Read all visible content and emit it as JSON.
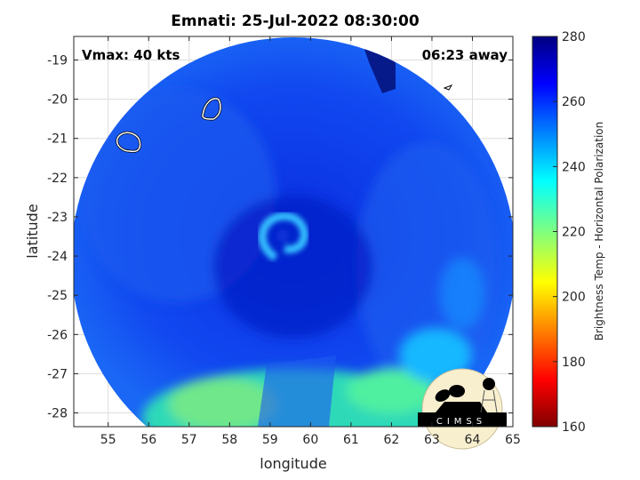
{
  "chart_data": {
    "type": "heatmap",
    "title": "Emnati: 25-Jul-2022 08:30:00",
    "xlabel": "longitude",
    "ylabel": "latitude",
    "xlim": [
      54.15,
      65.0
    ],
    "ylim": [
      -28.35,
      -18.4
    ],
    "xticks": [
      55,
      56,
      57,
      58,
      59,
      60,
      61,
      62,
      63,
      64,
      65
    ],
    "yticks": [
      -19,
      -20,
      -21,
      -22,
      -23,
      -24,
      -25,
      -26,
      -27,
      -28
    ],
    "grid": true,
    "annotations": {
      "vmax": "Vmax: 40 kts",
      "time_offset": "06:23 away"
    },
    "colorbar": {
      "label": "Brightness Temp - Horizontal Polarization",
      "range": [
        160,
        280
      ],
      "ticks": [
        280,
        260,
        240,
        220,
        200,
        180,
        160
      ],
      "colormap": "jet",
      "placement": "right"
    },
    "features": {
      "storm_center": {
        "lon": 59.4,
        "lat": -23.6
      },
      "warm_region_top_right": "~275-280 K",
      "cold_band_south": "~215-240 K"
    }
  },
  "logo": {
    "text": "CIMSS"
  }
}
